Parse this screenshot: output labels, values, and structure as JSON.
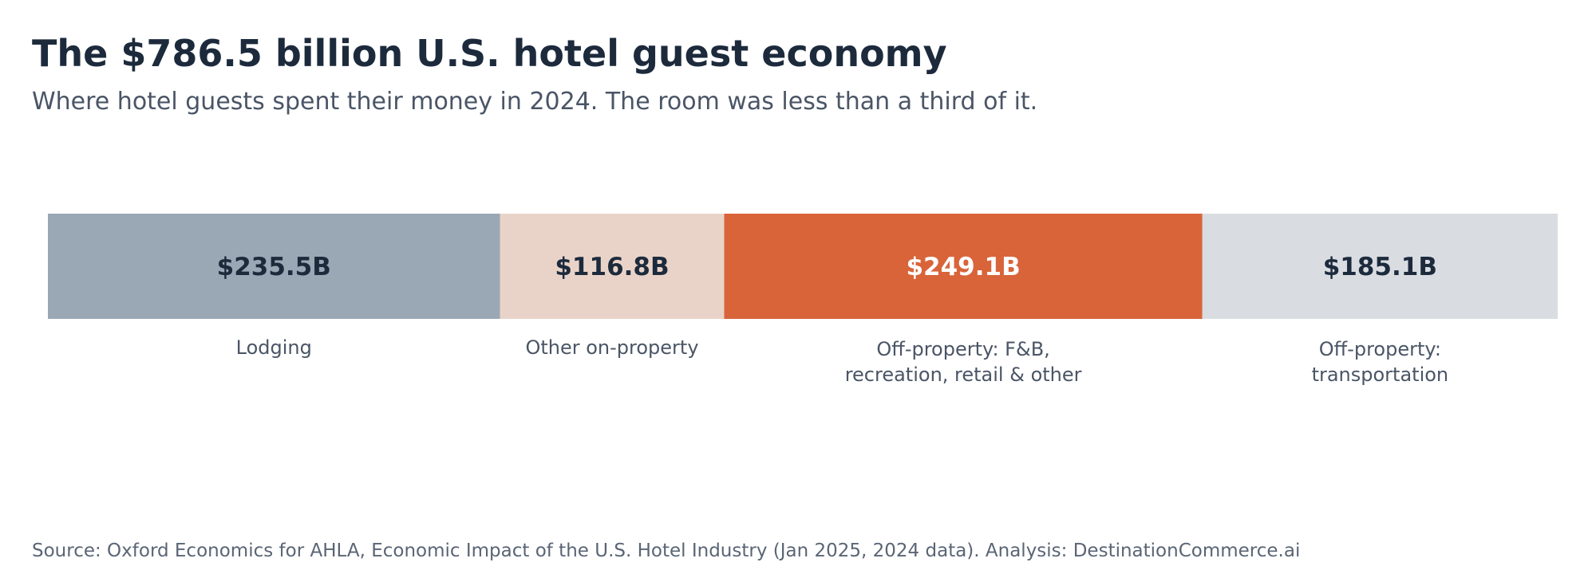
{
  "title": "The $786.5 billion U.S. hotel guest economy",
  "subtitle": "Where hotel guests spent their money in 2024. The room was less than a third of it.",
  "source": "Source: Oxford Economics for AHLA, Economic Impact of the U.S. Hotel Industry (Jan 2025, 2024 data). Analysis: DestinationCommerce.ai",
  "chart_data": {
    "type": "bar",
    "orientation": "horizontal-stacked",
    "total": 786.5,
    "segments": [
      {
        "label_lines": [
          "Lodging"
        ],
        "value": 235.5,
        "value_label": "$235.5B",
        "color": "#9aa8b5",
        "text_color": "#1c2a3c"
      },
      {
        "label_lines": [
          "Other on-property"
        ],
        "value": 116.8,
        "value_label": "$116.8B",
        "color": "#e9d3c8",
        "text_color": "#1c2a3c"
      },
      {
        "label_lines": [
          "Off-property: F&B,",
          "recreation, retail & other"
        ],
        "value": 249.1,
        "value_label": "$249.1B",
        "color": "#d9643a",
        "text_color": "#ffffff"
      },
      {
        "label_lines": [
          "Off-property:",
          "transportation"
        ],
        "value": 185.1,
        "value_label": "$185.1B",
        "color": "#d9dde2",
        "text_color": "#1c2a3c"
      }
    ]
  }
}
